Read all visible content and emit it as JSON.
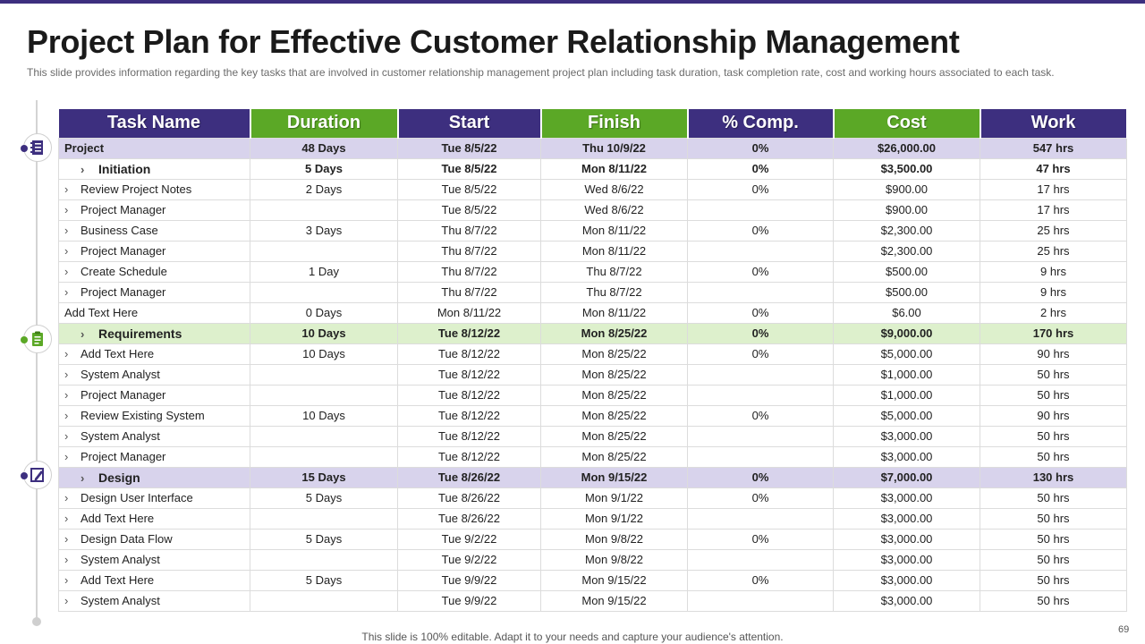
{
  "title": "Project Plan for Effective Customer Relationship Management",
  "subtitle": "This slide provides  information  regarding  the key tasks that are involved  in customer relationship management  project plan including task duration,  task completion rate,  cost and working  hours associated to each task.",
  "colors": {
    "purple": "#3d2f7f",
    "green": "#5ba826",
    "project_row": "#d8d3ec",
    "requirements_row": "#ddf0cc"
  },
  "icons": [
    "document-list-icon",
    "clipboard-icon",
    "edit-document-icon"
  ],
  "table": {
    "headers": [
      "Task Name",
      "Duration",
      "Start",
      "Finish",
      "% Comp.",
      "Cost",
      "Work"
    ],
    "rows": [
      {
        "task": "Project",
        "duration": "48 Days",
        "start": "Tue 8/5/22",
        "finish": "Thu 10/9/22",
        "comp": "0%",
        "cost": "$26,000.00",
        "work": "547  hrs"
      },
      {
        "task": "Initiation",
        "duration": "5 Days",
        "start": "Tue 8/5/22",
        "finish": "Mon 8/11/22",
        "comp": "0%",
        "cost": "$3,500.00",
        "work": "47 hrs"
      },
      {
        "task": "Review  Project Notes",
        "duration": "2 Days",
        "start": "Tue 8/5/22",
        "finish": "Wed 8/6/22",
        "comp": "0%",
        "cost": "$900.00",
        "work": "17 hrs"
      },
      {
        "task": "Project Manager",
        "duration": "",
        "start": "Tue 8/5/22",
        "finish": "Wed 8/6/22",
        "comp": "",
        "cost": "$900.00",
        "work": "17 hrs"
      },
      {
        "task": "Business Case",
        "duration": "3 Days",
        "start": "Thu 8/7/22",
        "finish": "Mon 8/11/22",
        "comp": "0%",
        "cost": "$2,300.00",
        "work": "25 hrs"
      },
      {
        "task": "Project Manager",
        "duration": "",
        "start": "Thu 8/7/22",
        "finish": "Mon 8/11/22",
        "comp": "",
        "cost": "$2,300.00",
        "work": "25 hrs"
      },
      {
        "task": "Create Schedule",
        "duration": "1 Day",
        "start": "Thu 8/7/22",
        "finish": "Thu  8/7/22",
        "comp": "0%",
        "cost": "$500.00",
        "work": "9 hrs"
      },
      {
        "task": "Project Manager",
        "duration": "",
        "start": "Thu 8/7/22",
        "finish": "Thu 8/7/22",
        "comp": "",
        "cost": "$500.00",
        "work": "9 hrs"
      },
      {
        "task": "Add Text Here",
        "duration": "0 Days",
        "start": "Mon 8/11/22",
        "finish": "Mon 8/11/22",
        "comp": "0%",
        "cost": "$6.00",
        "work": "2 hrs"
      },
      {
        "task": "Requirements",
        "duration": "10 Days",
        "start": "Tue 8/12/22",
        "finish": "Mon 8/25/22",
        "comp": "0%",
        "cost": "$9,000.00",
        "work": "170  hrs"
      },
      {
        "task": "Add Text Here",
        "duration": "10 Days",
        "start": "Tue 8/12/22",
        "finish": "Mon 8/25/22",
        "comp": "0%",
        "cost": "$5,000.00",
        "work": "90 hrs"
      },
      {
        "task": "System Analyst",
        "duration": "",
        "start": "Tue 8/12/22",
        "finish": "Mon 8/25/22",
        "comp": "",
        "cost": "$1,000.00",
        "work": "50 hrs"
      },
      {
        "task": "Project Manager",
        "duration": "",
        "start": "Tue 8/12/22",
        "finish": "Mon 8/25/22",
        "comp": "",
        "cost": "$1,000.00",
        "work": "50 hrs"
      },
      {
        "task": "Review  Existing System",
        "duration": "10 Days",
        "start": "Tue 8/12/22",
        "finish": "Mon 8/25/22",
        "comp": "0%",
        "cost": "$5,000.00",
        "work": "90 hrs"
      },
      {
        "task": "System Analyst",
        "duration": "",
        "start": "Tue 8/12/22",
        "finish": "Mon 8/25/22",
        "comp": "",
        "cost": "$3,000.00",
        "work": "50 hrs"
      },
      {
        "task": "Project Manager",
        "duration": "",
        "start": "Tue 8/12/22",
        "finish": "Mon 8/25/22",
        "comp": "",
        "cost": "$3,000.00",
        "work": "50 hrs"
      },
      {
        "task": "Design",
        "duration": "15 Days",
        "start": "Tue 8/26/22",
        "finish": "Mon 9/15/22",
        "comp": "0%",
        "cost": "$7,000.00",
        "work": "130  hrs"
      },
      {
        "task": "Design User Interface",
        "duration": "5 Days",
        "start": "Tue 8/26/22",
        "finish": "Mon 9/1/22",
        "comp": "0%",
        "cost": "$3,000.00",
        "work": "50 hrs"
      },
      {
        "task": "Add Text Here",
        "duration": "",
        "start": "Tue 8/26/22",
        "finish": "Mon 9/1/22",
        "comp": "",
        "cost": "$3,000.00",
        "work": "50 hrs"
      },
      {
        "task": "Design Data Flow",
        "duration": "5 Days",
        "start": "Tue 9/2/22",
        "finish": "Mon 9/8/22",
        "comp": "0%",
        "cost": "$3,000.00",
        "work": "50 hrs"
      },
      {
        "task": "System Analyst",
        "duration": "",
        "start": "Tue 9/2/22",
        "finish": "Mon 9/8/22",
        "comp": "",
        "cost": "$3,000.00",
        "work": "50 hrs"
      },
      {
        "task": "Add Text Here",
        "duration": "5 Days",
        "start": "Tue 9/9/22",
        "finish": "Mon 9/15/22",
        "comp": "0%",
        "cost": "$3,000.00",
        "work": "50 hrs"
      },
      {
        "task": "System Analyst",
        "duration": "",
        "start": "Tue 9/9/22",
        "finish": "Mon 9/15/22",
        "comp": "",
        "cost": "$3,000.00",
        "work": "50 hrs"
      }
    ]
  },
  "footer": "This slide is 100% editable. Adapt it to your needs and capture your audience's attention.",
  "page_number": "69"
}
